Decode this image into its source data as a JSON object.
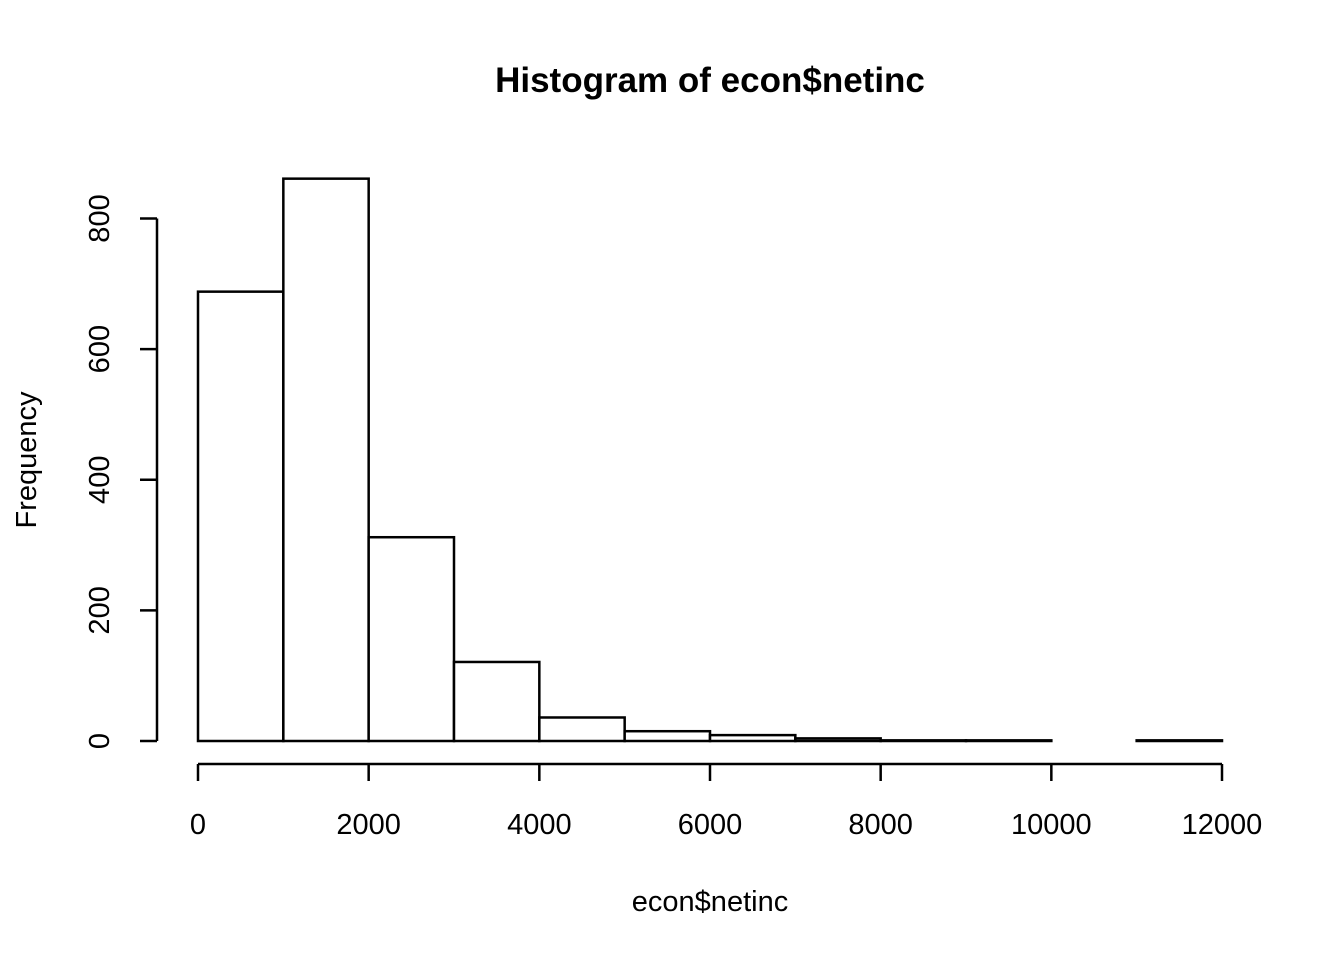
{
  "chart_data": {
    "type": "bar",
    "title": "Histogram of econ$netinc",
    "xlabel": "econ$netinc",
    "ylabel": "Frequency",
    "bin_edges": [
      0,
      1000,
      2000,
      3000,
      4000,
      5000,
      6000,
      7000,
      8000,
      9000,
      10000,
      11000,
      12000
    ],
    "values": [
      688,
      861,
      312,
      121,
      36,
      15,
      9,
      4,
      1,
      1,
      0,
      1
    ],
    "xlim": [
      0,
      12000
    ],
    "ylim": [
      0,
      861
    ],
    "x_ticks": [
      0,
      2000,
      4000,
      6000,
      8000,
      10000,
      12000
    ],
    "x_tick_labels": [
      "0",
      "2000",
      "4000",
      "6000",
      "8000",
      "10000",
      "12000"
    ],
    "y_ticks": [
      0,
      200,
      400,
      600,
      800
    ],
    "y_tick_labels": [
      "0",
      "200",
      "400",
      "600",
      "800"
    ],
    "grid": false,
    "legend": "none",
    "colors": {
      "bar_fill": "#ffffff",
      "bar_stroke": "#000000",
      "background": "#ffffff"
    }
  }
}
